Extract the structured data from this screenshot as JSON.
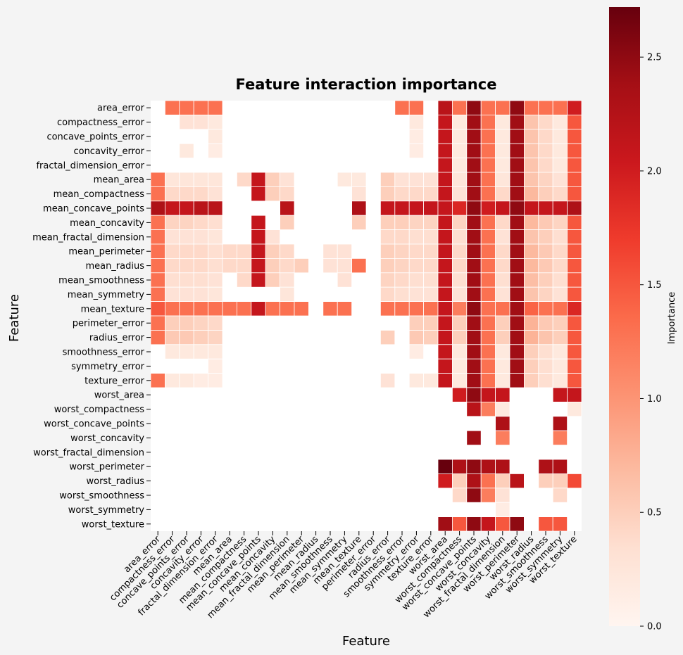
{
  "chart_data": {
    "type": "heatmap",
    "title": "Feature interaction importance",
    "xlabel": "Feature",
    "ylabel": "Feature",
    "features": [
      "area_error",
      "compactness_error",
      "concave_points_error",
      "concavity_error",
      "fractal_dimension_error",
      "mean_area",
      "mean_compactness",
      "mean_concave_points",
      "mean_concavity",
      "mean_fractal_dimension",
      "mean_perimeter",
      "mean_radius",
      "mean_smoothness",
      "mean_symmetry",
      "mean_texture",
      "perimeter_error",
      "radius_error",
      "smoothness_error",
      "symmetry_error",
      "texture_error",
      "worst_area",
      "worst_compactness",
      "worst_concave_points",
      "worst_concavity",
      "worst_fractal_dimension",
      "worst_perimeter",
      "worst_radius",
      "worst_smoothness",
      "worst_symmetry",
      "worst_texture"
    ],
    "colorbar": {
      "label": "Importance",
      "min": 0.0,
      "max": 2.72,
      "ticks": [
        0.0,
        0.5,
        1.0,
        1.5,
        2.0,
        2.5
      ],
      "tick_labels": [
        "0.0",
        "0.5",
        "1.0",
        "1.5",
        "2.0",
        "2.5"
      ],
      "colormap": "Reds"
    },
    "values": [
      [
        null,
        1.3,
        1.3,
        1.3,
        1.3,
        null,
        null,
        null,
        null,
        null,
        null,
        null,
        null,
        null,
        null,
        null,
        null,
        1.3,
        1.3,
        null,
        2.2,
        1.3,
        2.5,
        1.3,
        1.3,
        2.5,
        1.3,
        1.3,
        1.3,
        2.0
      ],
      [
        null,
        null,
        0.3,
        0.3,
        0.2,
        null,
        null,
        null,
        null,
        null,
        null,
        null,
        null,
        null,
        null,
        null,
        null,
        null,
        0.2,
        null,
        2.1,
        0.2,
        2.4,
        1.3,
        0.2,
        2.4,
        0.6,
        0.4,
        0.2,
        1.5
      ],
      [
        null,
        null,
        null,
        null,
        0.2,
        null,
        null,
        null,
        null,
        null,
        null,
        null,
        null,
        null,
        null,
        null,
        null,
        null,
        0.15,
        null,
        2.1,
        0.2,
        2.4,
        1.3,
        0.2,
        2.4,
        0.6,
        0.4,
        0.2,
        1.5
      ],
      [
        null,
        null,
        0.2,
        null,
        0.15,
        null,
        null,
        null,
        null,
        null,
        null,
        null,
        null,
        null,
        null,
        null,
        null,
        null,
        0.15,
        null,
        2.1,
        0.2,
        2.4,
        1.3,
        0.2,
        2.4,
        0.6,
        0.4,
        0.2,
        1.5
      ],
      [
        null,
        null,
        null,
        null,
        null,
        null,
        null,
        null,
        null,
        null,
        null,
        null,
        null,
        null,
        null,
        null,
        null,
        null,
        null,
        null,
        2.1,
        0.2,
        2.4,
        1.3,
        0.2,
        2.4,
        0.6,
        0.4,
        0.2,
        1.5
      ],
      [
        1.3,
        0.25,
        0.25,
        0.25,
        0.25,
        null,
        0.4,
        2.1,
        0.5,
        0.3,
        null,
        null,
        null,
        0.2,
        0.2,
        null,
        0.5,
        0.3,
        0.3,
        0.3,
        2.1,
        0.25,
        2.4,
        1.3,
        0.25,
        2.4,
        0.6,
        0.45,
        0.3,
        1.5
      ],
      [
        1.3,
        0.4,
        0.4,
        0.4,
        0.3,
        null,
        null,
        2.1,
        0.5,
        0.4,
        null,
        null,
        null,
        null,
        0.3,
        null,
        0.5,
        0.4,
        0.4,
        0.4,
        2.1,
        0.3,
        2.4,
        1.3,
        0.4,
        2.4,
        0.7,
        0.5,
        0.4,
        1.5
      ],
      [
        2.3,
        2.1,
        2.1,
        2.2,
        2.2,
        null,
        null,
        null,
        null,
        2.2,
        null,
        null,
        null,
        null,
        2.3,
        null,
        2.1,
        2.1,
        2.1,
        2.1,
        2.1,
        1.9,
        2.5,
        2.0,
        2.1,
        2.5,
        2.1,
        2.1,
        2.1,
        2.3
      ],
      [
        1.3,
        0.45,
        0.45,
        0.4,
        0.35,
        null,
        null,
        2.1,
        null,
        0.5,
        null,
        null,
        null,
        null,
        0.5,
        null,
        0.5,
        0.5,
        0.45,
        0.45,
        2.1,
        0.45,
        2.4,
        1.3,
        0.4,
        2.4,
        0.7,
        0.55,
        0.45,
        1.5
      ],
      [
        1.3,
        0.3,
        0.3,
        0.3,
        0.25,
        null,
        null,
        2.1,
        0.3,
        null,
        null,
        null,
        null,
        null,
        null,
        null,
        0.4,
        0.4,
        0.35,
        0.35,
        2.1,
        0.35,
        2.4,
        1.3,
        0.3,
        2.4,
        0.6,
        0.5,
        0.35,
        1.5
      ],
      [
        1.3,
        0.4,
        0.4,
        0.4,
        0.35,
        0.4,
        0.4,
        2.1,
        0.5,
        0.4,
        null,
        null,
        0.3,
        0.3,
        null,
        null,
        0.5,
        0.45,
        0.4,
        0.4,
        2.1,
        0.4,
        2.4,
        1.3,
        0.4,
        2.4,
        0.7,
        0.55,
        0.4,
        1.5
      ],
      [
        1.3,
        0.4,
        0.4,
        0.4,
        0.35,
        0.4,
        0.4,
        2.1,
        0.5,
        0.4,
        0.5,
        null,
        0.3,
        0.3,
        1.3,
        null,
        0.5,
        0.45,
        0.4,
        0.4,
        2.1,
        0.4,
        2.4,
        1.3,
        0.4,
        2.4,
        0.7,
        0.55,
        0.4,
        1.5
      ],
      [
        1.3,
        0.35,
        0.35,
        0.35,
        0.3,
        null,
        0.4,
        2.1,
        0.5,
        0.3,
        null,
        null,
        null,
        0.3,
        null,
        null,
        0.45,
        0.4,
        0.35,
        0.35,
        2.1,
        0.35,
        2.4,
        1.3,
        0.35,
        2.4,
        0.65,
        0.5,
        0.35,
        1.5
      ],
      [
        1.3,
        0.3,
        0.3,
        0.3,
        0.25,
        null,
        null,
        null,
        null,
        0.25,
        null,
        null,
        null,
        null,
        null,
        null,
        0.4,
        0.35,
        0.3,
        0.3,
        2.1,
        0.3,
        2.4,
        1.3,
        0.3,
        2.4,
        0.6,
        0.45,
        0.3,
        1.5
      ],
      [
        1.5,
        1.3,
        1.3,
        1.3,
        1.3,
        1.3,
        1.3,
        2.1,
        1.3,
        1.3,
        1.3,
        null,
        1.3,
        1.3,
        null,
        null,
        1.3,
        1.3,
        1.3,
        1.3,
        2.1,
        1.2,
        2.5,
        1.3,
        1.3,
        2.4,
        1.4,
        1.3,
        1.3,
        1.9
      ],
      [
        1.3,
        0.5,
        0.5,
        0.45,
        0.4,
        null,
        null,
        null,
        null,
        null,
        null,
        null,
        null,
        null,
        null,
        null,
        null,
        null,
        0.5,
        0.5,
        2.1,
        0.5,
        2.4,
        1.3,
        0.5,
        2.4,
        0.75,
        0.55,
        0.5,
        1.5
      ],
      [
        1.3,
        0.55,
        0.55,
        0.5,
        0.45,
        null,
        null,
        null,
        null,
        null,
        null,
        null,
        null,
        null,
        null,
        null,
        0.5,
        null,
        0.55,
        0.5,
        2.1,
        0.5,
        2.4,
        1.3,
        0.5,
        2.4,
        0.75,
        0.6,
        0.5,
        1.5
      ],
      [
        null,
        0.2,
        0.2,
        0.2,
        0.2,
        null,
        null,
        null,
        null,
        null,
        null,
        null,
        null,
        null,
        null,
        null,
        null,
        null,
        0.15,
        null,
        2.1,
        0.2,
        2.4,
        1.3,
        0.2,
        2.4,
        0.5,
        0.35,
        0.2,
        1.5
      ],
      [
        null,
        null,
        null,
        null,
        0.15,
        null,
        null,
        null,
        null,
        null,
        null,
        null,
        null,
        null,
        null,
        null,
        null,
        null,
        null,
        null,
        2.1,
        0.2,
        2.4,
        1.3,
        0.2,
        2.4,
        0.5,
        0.35,
        0.2,
        1.5
      ],
      [
        1.3,
        0.2,
        0.2,
        0.15,
        0.15,
        null,
        null,
        null,
        null,
        null,
        null,
        null,
        null,
        null,
        null,
        null,
        0.3,
        null,
        0.2,
        0.2,
        2.1,
        0.2,
        2.4,
        1.3,
        0.2,
        2.4,
        0.5,
        0.35,
        0.2,
        1.5
      ],
      [
        null,
        null,
        null,
        null,
        null,
        null,
        null,
        null,
        null,
        null,
        null,
        null,
        null,
        null,
        null,
        null,
        null,
        null,
        null,
        null,
        null,
        2.0,
        2.5,
        2.1,
        2.1,
        null,
        null,
        null,
        2.1,
        2.1
      ],
      [
        null,
        null,
        null,
        null,
        null,
        null,
        null,
        null,
        null,
        null,
        null,
        null,
        null,
        null,
        null,
        null,
        null,
        null,
        null,
        null,
        null,
        null,
        2.2,
        1.2,
        0.2,
        null,
        null,
        null,
        null,
        0.2
      ],
      [
        null,
        null,
        null,
        null,
        null,
        null,
        null,
        null,
        null,
        null,
        null,
        null,
        null,
        null,
        null,
        null,
        null,
        null,
        null,
        null,
        null,
        null,
        null,
        null,
        2.3,
        null,
        null,
        null,
        2.3,
        null
      ],
      [
        null,
        null,
        null,
        null,
        null,
        null,
        null,
        null,
        null,
        null,
        null,
        null,
        null,
        null,
        null,
        null,
        null,
        null,
        null,
        null,
        null,
        null,
        2.4,
        null,
        1.2,
        null,
        null,
        null,
        1.2,
        null
      ],
      [
        null,
        null,
        null,
        null,
        null,
        null,
        null,
        null,
        null,
        null,
        null,
        null,
        null,
        null,
        null,
        null,
        null,
        null,
        null,
        null,
        null,
        null,
        null,
        null,
        null,
        null,
        null,
        null,
        null,
        null
      ],
      [
        null,
        null,
        null,
        null,
        null,
        null,
        null,
        null,
        null,
        null,
        null,
        null,
        null,
        null,
        null,
        null,
        null,
        null,
        null,
        null,
        2.72,
        2.3,
        2.5,
        2.3,
        2.3,
        null,
        null,
        2.3,
        2.3,
        null
      ],
      [
        null,
        null,
        null,
        null,
        null,
        null,
        null,
        null,
        null,
        null,
        null,
        null,
        null,
        null,
        null,
        null,
        null,
        null,
        null,
        null,
        2.0,
        0.5,
        2.3,
        1.3,
        0.5,
        2.2,
        null,
        0.5,
        0.5,
        1.6
      ],
      [
        null,
        null,
        null,
        null,
        null,
        null,
        null,
        null,
        null,
        null,
        null,
        null,
        null,
        null,
        null,
        null,
        null,
        null,
        null,
        null,
        null,
        0.4,
        2.5,
        1.2,
        0.3,
        null,
        null,
        null,
        0.4,
        null
      ],
      [
        null,
        null,
        null,
        null,
        null,
        null,
        null,
        null,
        null,
        null,
        null,
        null,
        null,
        null,
        null,
        null,
        null,
        null,
        null,
        null,
        null,
        null,
        null,
        null,
        0.15,
        null,
        null,
        null,
        null,
        null
      ],
      [
        null,
        null,
        null,
        null,
        null,
        null,
        null,
        null,
        null,
        null,
        null,
        null,
        null,
        null,
        null,
        null,
        null,
        null,
        null,
        null,
        2.4,
        1.5,
        2.5,
        2.1,
        1.5,
        2.5,
        null,
        1.5,
        1.5,
        null
      ]
    ]
  }
}
